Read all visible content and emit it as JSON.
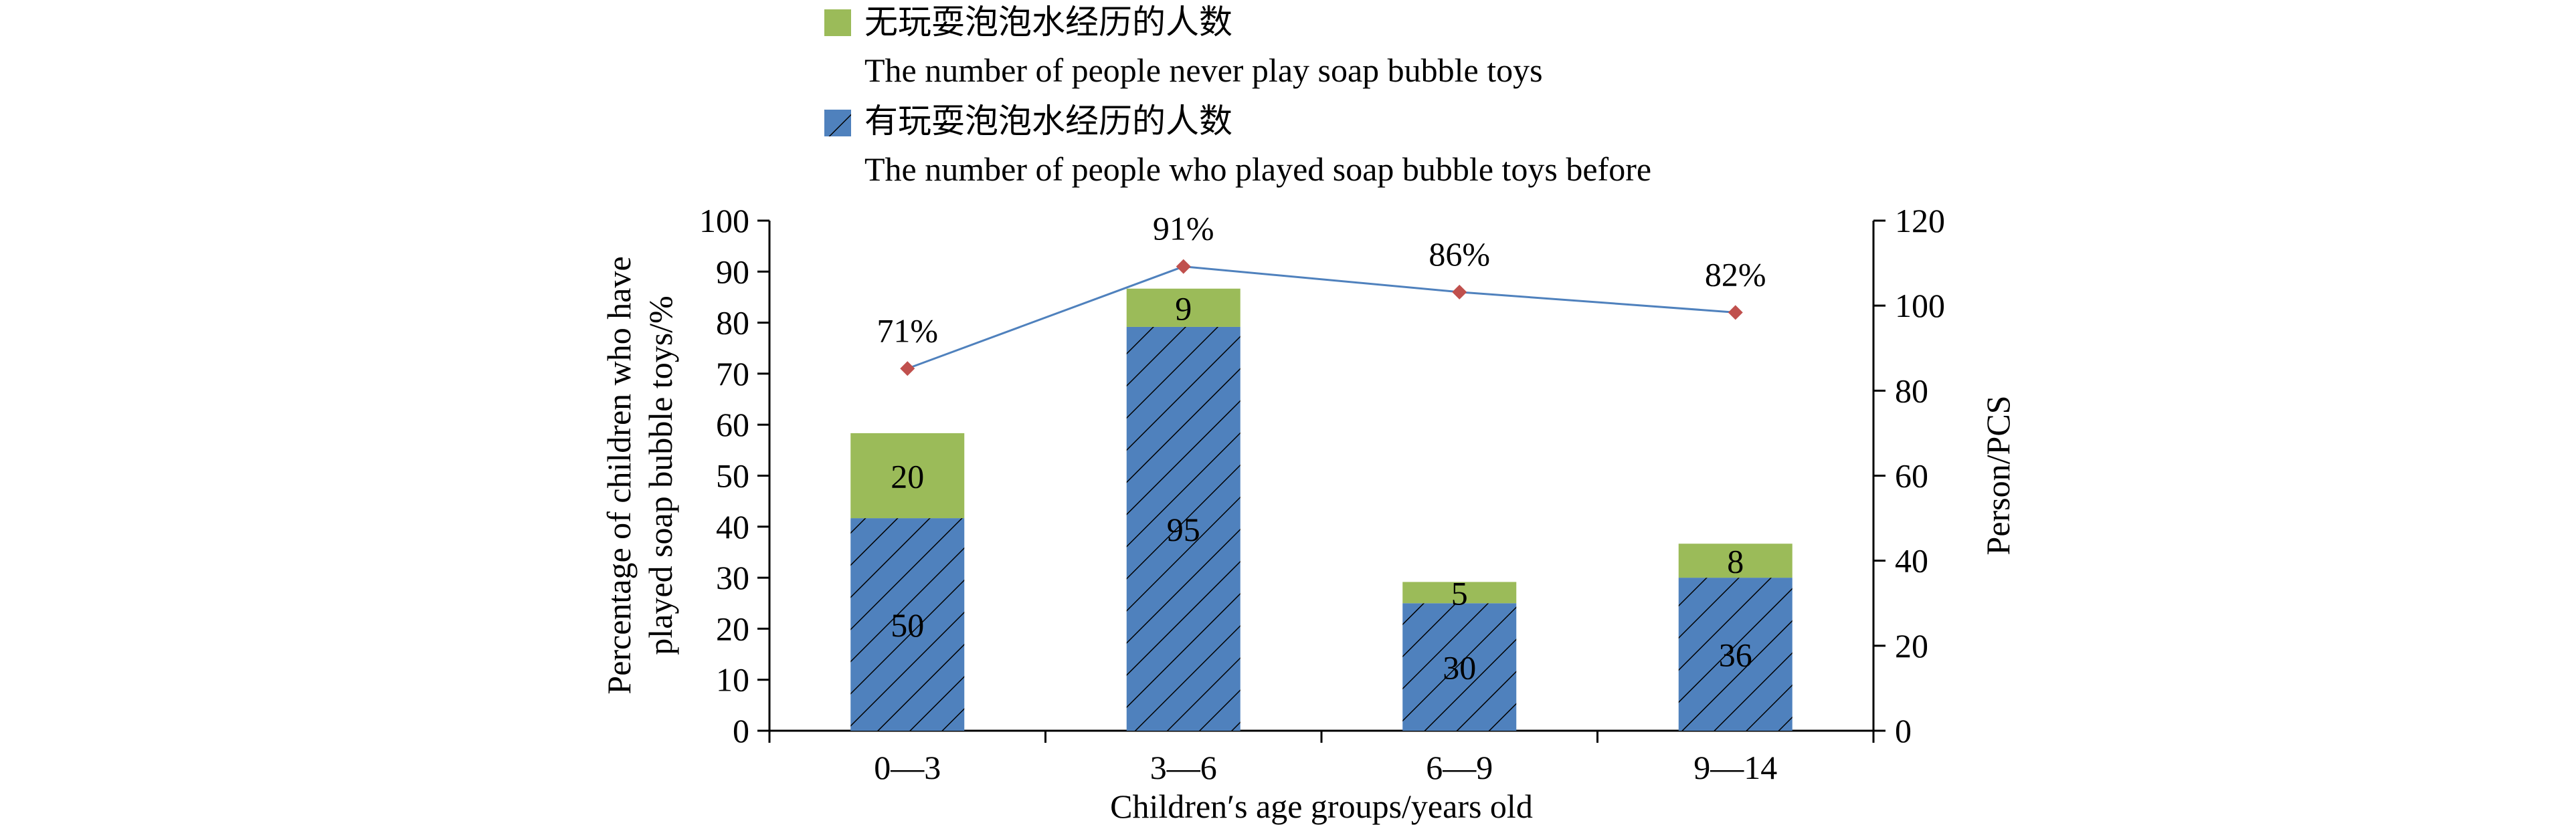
{
  "chart_data": {
    "type": "bar",
    "subtype": "stacked bar with line on secondary axis",
    "categories": [
      "0—3",
      "3—6",
      "6—9",
      "9—14"
    ],
    "xlabel": "Children′s age groups/years old",
    "ylabel_left_line1": "Percentage of children who have",
    "ylabel_left_line2": "played soap bubble toys/%",
    "ylabel_right": "Person/PCS",
    "ylim_left": [
      0,
      100
    ],
    "yticks_left": [
      0,
      10,
      20,
      30,
      40,
      50,
      60,
      70,
      80,
      90,
      100
    ],
    "ylim_right": [
      0,
      120
    ],
    "yticks_right": [
      0,
      20,
      40,
      60,
      80,
      100,
      120
    ],
    "series": [
      {
        "name": "有玩耍泡泡水经历的人数",
        "name_en": "The number of people who played soap bubble toys before",
        "type": "bar",
        "axis": "right",
        "stack_order": 1,
        "color": "#4f81bd",
        "pattern": "diagonal-hatch",
        "values": [
          50,
          95,
          30,
          36
        ],
        "labels": [
          "50",
          "95",
          "30",
          "36"
        ]
      },
      {
        "name": "无玩耍泡泡水经历的人数",
        "name_en": "The number of people never play soap bubble toys",
        "type": "bar",
        "axis": "right",
        "stack_order": 2,
        "color": "#9bbb59",
        "pattern": "solid",
        "values": [
          20,
          9,
          5,
          8
        ],
        "labels": [
          "20",
          "9",
          "5",
          "8"
        ]
      },
      {
        "type": "line",
        "axis": "left",
        "color": "#4f81bd",
        "marker_color": "#c0504d",
        "marker": "diamond",
        "values": [
          71,
          91,
          86,
          82
        ],
        "labels": [
          "71%",
          "91%",
          "86%",
          "82%"
        ]
      }
    ],
    "legend": {
      "placement": "top",
      "entries": [
        {
          "series_index": 1,
          "label_cn": "无玩耍泡泡水经历的人数",
          "label_en": "The number of people never play soap bubble toys"
        },
        {
          "series_index": 0,
          "label_cn": "有玩耍泡泡水经历的人数",
          "label_en": "The number of people who played soap bubble toys before"
        }
      ]
    },
    "grid": false
  }
}
